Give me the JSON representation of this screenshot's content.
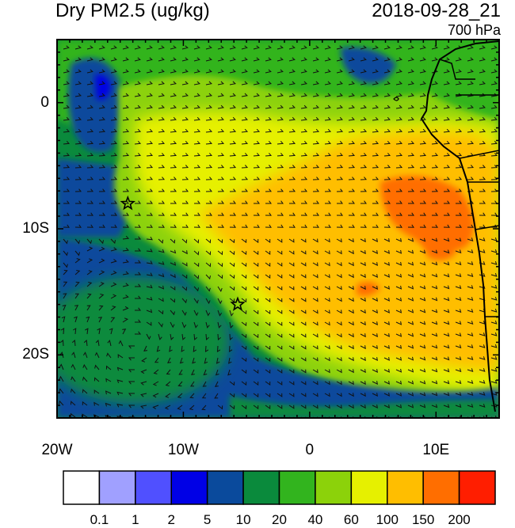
{
  "header": {
    "title": "Dry PM2.5 (ug/kg)",
    "datetime": "2018-09-28_21",
    "level": "700 hPa"
  },
  "map": {
    "region": "Southeast Atlantic / Southwest Africa",
    "lon_range": [
      -20,
      15
    ],
    "lat_range": [
      -25,
      5
    ],
    "x_ticks": [
      {
        "lon": -20,
        "label": "20W"
      },
      {
        "lon": -10,
        "label": "10W"
      },
      {
        "lon": 0,
        "label": "0"
      },
      {
        "lon": 10,
        "label": "10E"
      }
    ],
    "y_ticks": [
      {
        "lat": 0,
        "label": "0"
      },
      {
        "lat": -10,
        "label": "10S"
      },
      {
        "lat": -20,
        "label": "20S"
      }
    ],
    "markers": [
      {
        "name": "star-marker-ascension",
        "lon": -14.4,
        "lat": -8.0
      },
      {
        "name": "star-marker-st-helena",
        "lon": -5.7,
        "lat": -16.0
      }
    ],
    "overlay": "wind barbs"
  },
  "colorbar": {
    "colors": [
      "#ffffff",
      "#a0a0ff",
      "#5050ff",
      "#0000e6",
      "#0a4a9c",
      "#0a8a3c",
      "#32b41e",
      "#8cd20a",
      "#e6f000",
      "#ffbe00",
      "#ff6e00",
      "#ff1e00"
    ],
    "labels": [
      "0.1",
      "1",
      "2",
      "5",
      "10",
      "20",
      "40",
      "60",
      "100",
      "150",
      "200"
    ]
  }
}
